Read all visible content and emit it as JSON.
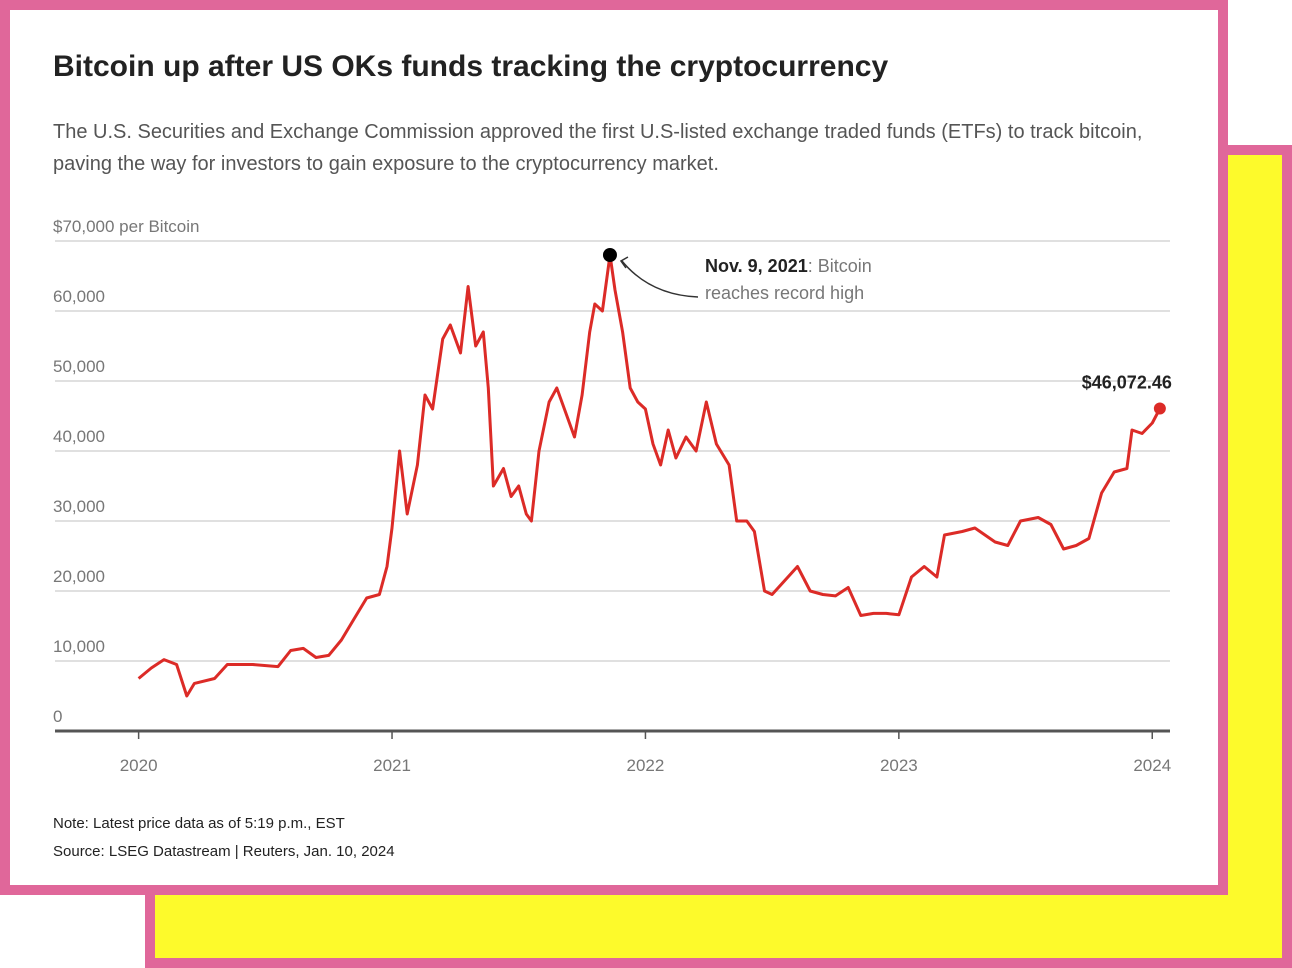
{
  "chart_data": {
    "type": "line",
    "title": "Bitcoin up after US OKs funds tracking the cryptocurrency",
    "subtitle": "The U.S. Securities and Exchange Commission approved the first U.S-listed exchange traded funds (ETFs) to track bitcoin, paving the way for investors to gain exposure to the cryptocurrency market.",
    "note": "Note: Latest price data as of 5:19 p.m., EST",
    "source": "Source: LSEG Datastream | Reuters, Jan. 10, 2024",
    "color": "#dc2b27",
    "grid": true,
    "x": [
      2020.0,
      2020.05,
      2020.1,
      2020.15,
      2020.19,
      2020.22,
      2020.3,
      2020.35,
      2020.45,
      2020.55,
      2020.6,
      2020.65,
      2020.7,
      2020.75,
      2020.8,
      2020.85,
      2020.9,
      2020.95,
      2020.98,
      2021.0,
      2021.03,
      2021.06,
      2021.1,
      2021.13,
      2021.16,
      2021.2,
      2021.23,
      2021.27,
      2021.3,
      2021.33,
      2021.36,
      2021.38,
      2021.4,
      2021.44,
      2021.47,
      2021.5,
      2021.53,
      2021.55,
      2021.58,
      2021.62,
      2021.65,
      2021.68,
      2021.72,
      2021.75,
      2021.78,
      2021.8,
      2021.83,
      2021.86,
      2021.88,
      2021.91,
      2021.94,
      2021.97,
      2022.0,
      2022.03,
      2022.06,
      2022.09,
      2022.12,
      2022.16,
      2022.2,
      2022.24,
      2022.28,
      2022.33,
      2022.36,
      2022.4,
      2022.43,
      2022.47,
      2022.5,
      2022.55,
      2022.6,
      2022.65,
      2022.7,
      2022.75,
      2022.8,
      2022.85,
      2022.9,
      2022.95,
      2023.0,
      2023.05,
      2023.1,
      2023.15,
      2023.18,
      2023.25,
      2023.3,
      2023.38,
      2023.43,
      2023.48,
      2023.55,
      2023.6,
      2023.65,
      2023.7,
      2023.75,
      2023.8,
      2023.85,
      2023.9,
      2023.92,
      2023.96,
      2024.0,
      2024.03
    ],
    "values": [
      7500,
      9000,
      10200,
      9500,
      5000,
      6800,
      7500,
      9500,
      9500,
      9200,
      11500,
      11800,
      10500,
      10800,
      13000,
      16000,
      19000,
      19500,
      23500,
      29000,
      40000,
      31000,
      38000,
      48000,
      46000,
      56000,
      58000,
      54000,
      63500,
      55000,
      57000,
      49000,
      35000,
      37500,
      33500,
      35000,
      31000,
      30000,
      40000,
      47000,
      49000,
      46000,
      42000,
      48000,
      57000,
      61000,
      60000,
      68000,
      63000,
      57000,
      49000,
      47000,
      46000,
      41000,
      38000,
      43000,
      39000,
      42000,
      40000,
      47000,
      41000,
      38000,
      30000,
      30000,
      28500,
      20000,
      19500,
      21500,
      23500,
      20000,
      19500,
      19300,
      20500,
      16500,
      16800,
      16800,
      16600,
      22000,
      23500,
      22000,
      28000,
      28500,
      29000,
      27000,
      26500,
      30000,
      30500,
      29500,
      26000,
      26500,
      27500,
      34000,
      37000,
      37500,
      43000,
      42500,
      44000,
      46072.46
    ],
    "value_labels": [
      null,
      null,
      null,
      null,
      null,
      null,
      null,
      null,
      null,
      null,
      null,
      null,
      null,
      null,
      null,
      null,
      null,
      null,
      null,
      null,
      null,
      null,
      null,
      null,
      null,
      null,
      null,
      null,
      null,
      null,
      null,
      null,
      null,
      null,
      null,
      null,
      null,
      null,
      null,
      null,
      null,
      null,
      null,
      null,
      null,
      null,
      null,
      null,
      null,
      null,
      null,
      null,
      null,
      null,
      null,
      null,
      null,
      null,
      null,
      null,
      null,
      null,
      null,
      null,
      null,
      null,
      null,
      null,
      null,
      null,
      null,
      null,
      null,
      null,
      null,
      null,
      null,
      null,
      null,
      null,
      null,
      null,
      null,
      null,
      null,
      null,
      null,
      null,
      null,
      null,
      null,
      null,
      null,
      null,
      null,
      null,
      null,
      "$46,072.46"
    ],
    "annotations": [
      {
        "label": "Nov. 9, 2021",
        "text": ": Bitcoin reaches record high",
        "x": 2021.86,
        "y": 68000
      }
    ],
    "xlim": [
      2019.67,
      2024.07
    ],
    "xticks": [
      2020,
      2021,
      2022,
      2023,
      2024
    ],
    "ylim": [
      0,
      70000
    ],
    "yticks": [
      0,
      {
        "value": 10000,
        "label": "10,000"
      },
      {
        "value": 20000,
        "label": "20,000"
      },
      {
        "value": 30000,
        "label": "30,000"
      },
      {
        "value": 40000,
        "label": "40,000"
      },
      {
        "value": 50000,
        "label": "50,000"
      },
      {
        "value": 60000,
        "label": "60,000"
      },
      {
        "value": 70000,
        "label": "$70,000 per Bitcoin"
      }
    ]
  }
}
